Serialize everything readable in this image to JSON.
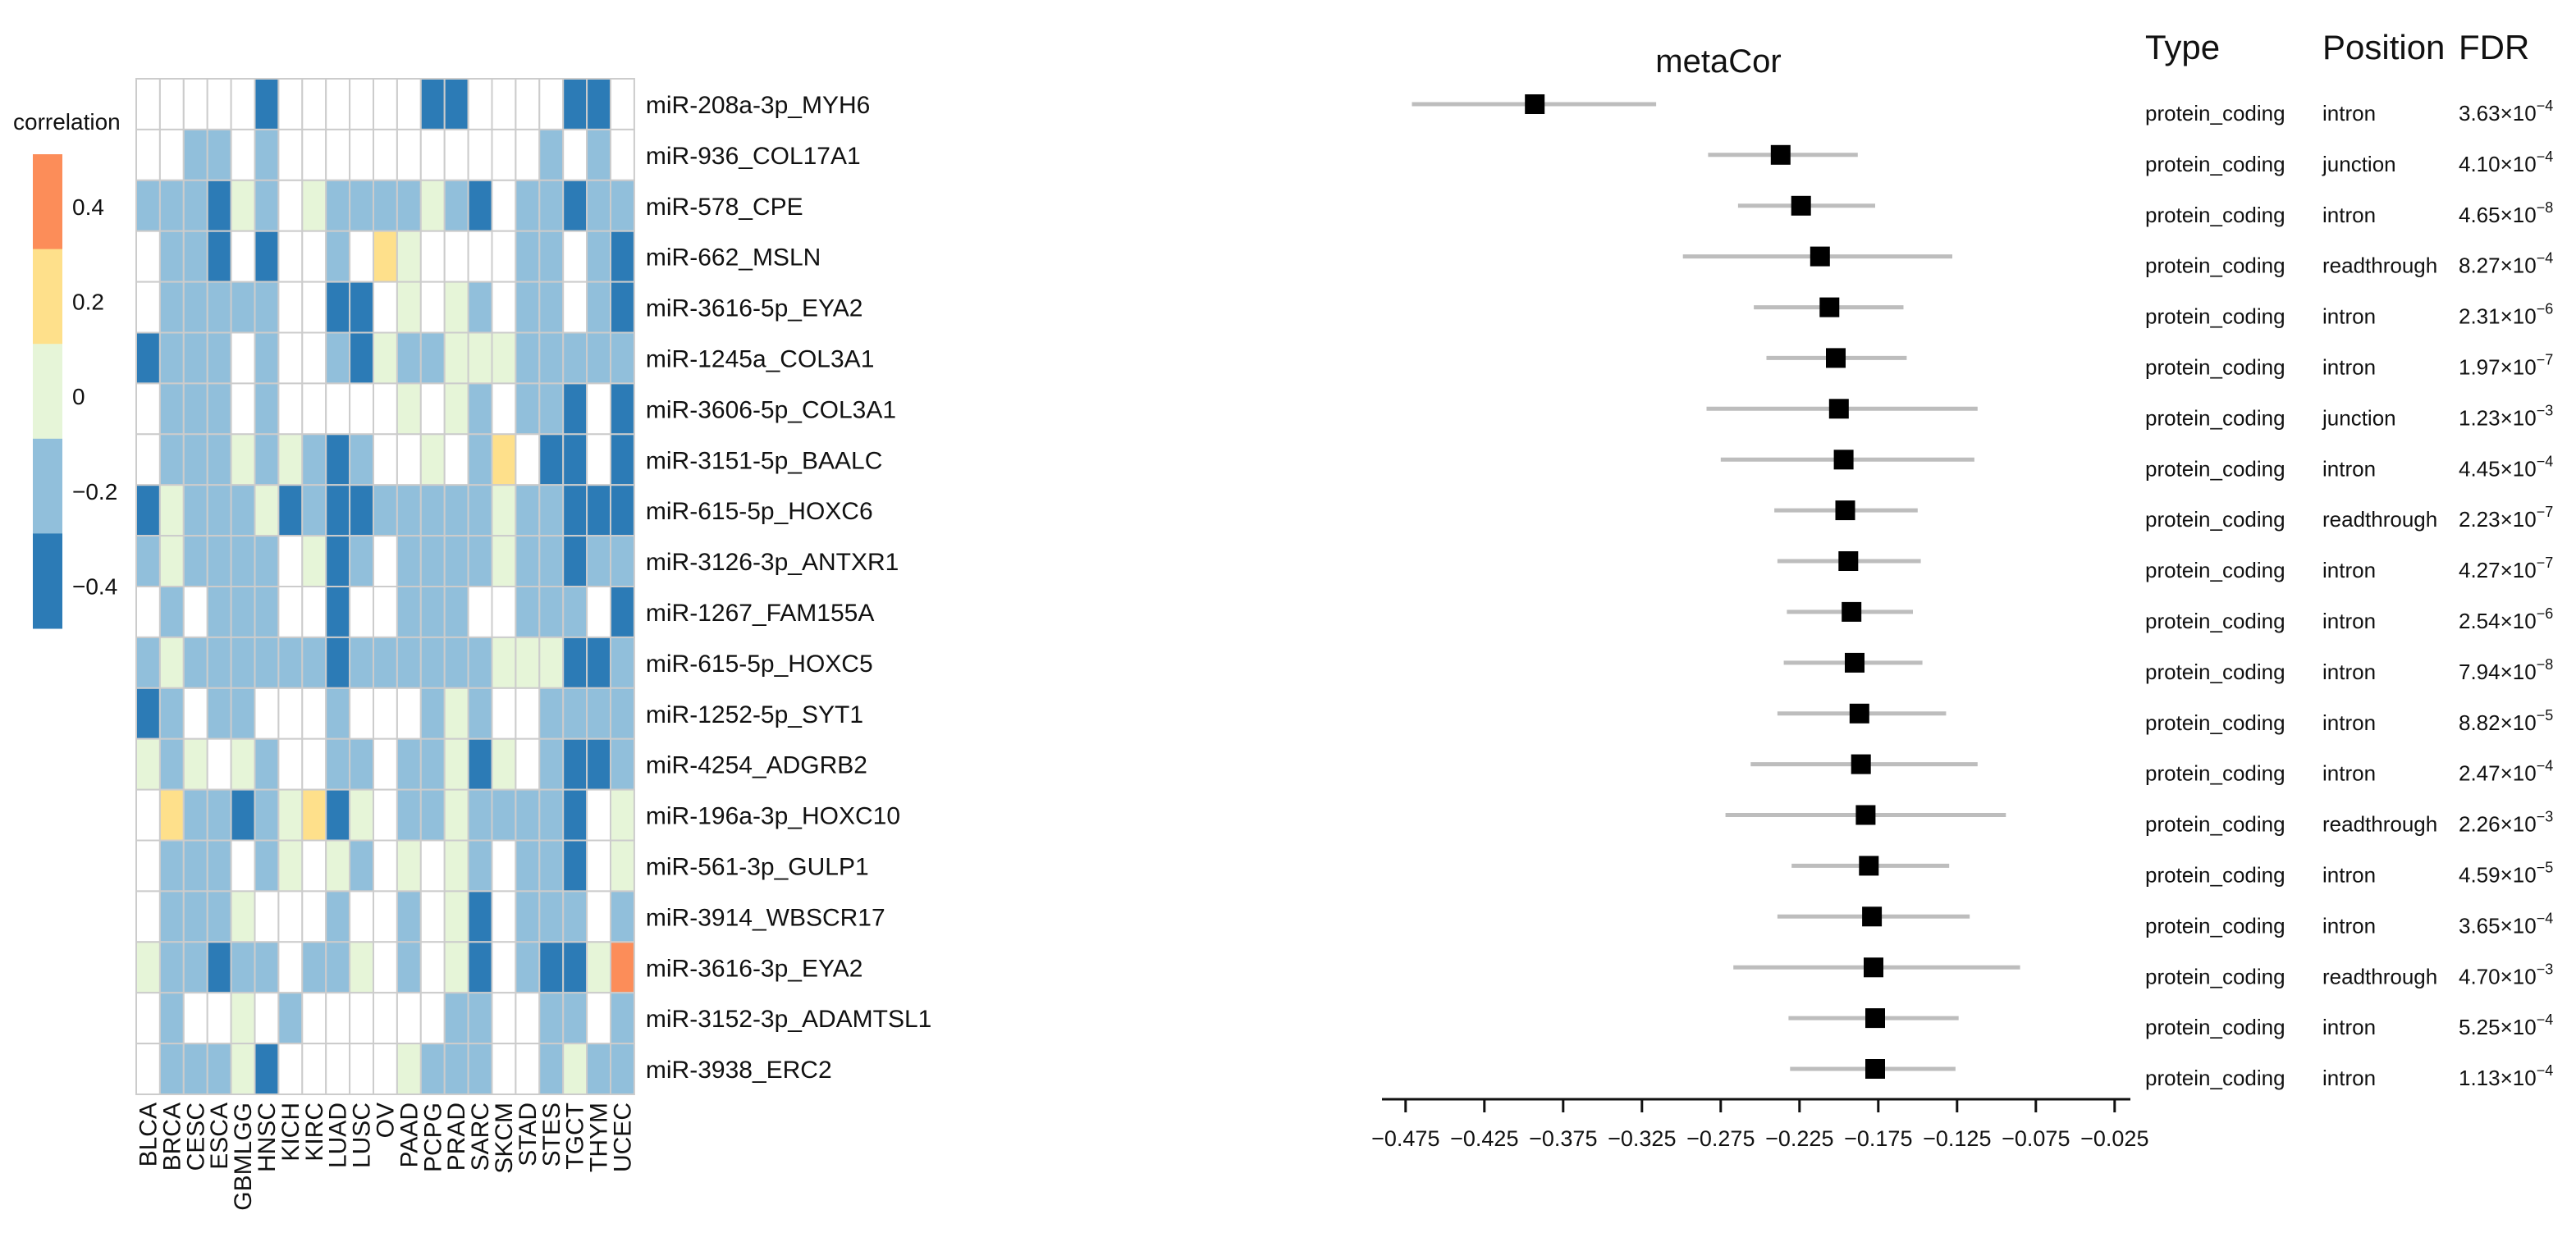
{
  "chart_data": [
    {
      "type": "heatmap",
      "legend_title": "correlation",
      "legend_ticks": [
        "0.4",
        "0.2",
        "0",
        "−0.2",
        "−0.4"
      ],
      "color_levels": [
        {
          "value": 0.5,
          "color": "#FC8D59"
        },
        {
          "value": 0.3,
          "color": "#FEE08B"
        },
        {
          "value": 0.1,
          "color": "#E6F5D8"
        },
        {
          "value": 0.0,
          "color": "#FFFFFF"
        },
        {
          "value": -0.15,
          "color": "#E6F5D8"
        },
        {
          "value": -0.3,
          "color": "#91BFDB"
        },
        {
          "value": -0.45,
          "color": "#2C7BB6"
        }
      ],
      "columns": [
        "BLCA",
        "BRCA",
        "CESC",
        "ESCA",
        "GBMLGG",
        "HNSC",
        "KICH",
        "KIRC",
        "LUAD",
        "LUSC",
        "OV",
        "PAAD",
        "PCPG",
        "PRAD",
        "SARC",
        "SKCM",
        "STAD",
        "STES",
        "TGCT",
        "THYM",
        "UCEC"
      ],
      "rows": [
        "miR-208a-3p_MYH6",
        "miR-936_COL17A1",
        "miR-578_CPE",
        "miR-662_MSLN",
        "miR-3616-5p_EYA2",
        "miR-1245a_COL3A1",
        "miR-3606-5p_COL3A1",
        "miR-3151-5p_BAALC",
        "miR-615-5p_HOXC6",
        "miR-3126-3p_ANTXR1",
        "miR-1267_FAM155A",
        "miR-615-5p_HOXC5",
        "miR-1252-5p_SYT1",
        "miR-4254_ADGRB2",
        "miR-196a-3p_HOXC10",
        "miR-561-3p_GULP1",
        "miR-3914_WBSCR17",
        "miR-3616-3p_EYA2",
        "miR-3152-3p_ADAMTSL1",
        "miR-3938_ERC2"
      ],
      "values": [
        [
          0,
          0,
          0,
          0,
          0,
          -0.45,
          0,
          0,
          0,
          0,
          0,
          0,
          -0.45,
          -0.45,
          0,
          0,
          0,
          0,
          -0.45,
          -0.45,
          0
        ],
        [
          0,
          0,
          -0.3,
          -0.3,
          0,
          -0.3,
          0,
          0,
          0,
          0,
          0,
          0,
          0,
          0,
          0,
          0,
          0,
          -0.3,
          0,
          -0.3,
          0
        ],
        [
          -0.3,
          -0.3,
          -0.3,
          -0.45,
          -0.15,
          -0.3,
          0,
          -0.15,
          -0.3,
          -0.3,
          -0.3,
          -0.3,
          -0.15,
          -0.3,
          -0.45,
          0,
          -0.3,
          -0.3,
          -0.45,
          -0.3,
          -0.3
        ],
        [
          0,
          -0.3,
          -0.3,
          -0.45,
          0,
          -0.45,
          0,
          0,
          -0.3,
          0,
          0.3,
          -0.15,
          0,
          0,
          0,
          0,
          -0.3,
          -0.3,
          0,
          -0.3,
          -0.45
        ],
        [
          0,
          -0.3,
          -0.3,
          -0.3,
          -0.3,
          -0.3,
          0,
          0,
          -0.45,
          -0.45,
          0,
          -0.15,
          0,
          -0.15,
          -0.3,
          0,
          -0.3,
          -0.3,
          0,
          -0.3,
          -0.45
        ],
        [
          -0.45,
          -0.3,
          -0.3,
          -0.3,
          0,
          -0.3,
          0,
          0,
          -0.3,
          -0.45,
          -0.15,
          -0.3,
          -0.3,
          -0.15,
          -0.15,
          -0.15,
          -0.3,
          -0.3,
          -0.3,
          -0.3,
          -0.3
        ],
        [
          0,
          -0.3,
          -0.3,
          -0.3,
          0,
          -0.3,
          0,
          0,
          0,
          0,
          0,
          -0.15,
          0,
          -0.15,
          -0.3,
          0,
          -0.3,
          -0.3,
          -0.45,
          0,
          -0.45
        ],
        [
          0,
          -0.3,
          -0.3,
          -0.3,
          -0.15,
          -0.3,
          -0.15,
          -0.3,
          -0.45,
          -0.3,
          0,
          0,
          -0.15,
          0,
          -0.3,
          0.3,
          0,
          -0.45,
          -0.45,
          0,
          -0.45
        ],
        [
          -0.45,
          -0.15,
          -0.3,
          -0.3,
          -0.3,
          -0.15,
          -0.45,
          -0.3,
          -0.45,
          -0.45,
          -0.3,
          -0.3,
          -0.3,
          -0.3,
          -0.3,
          -0.15,
          -0.3,
          -0.3,
          -0.45,
          -0.45,
          -0.45
        ],
        [
          -0.3,
          -0.15,
          -0.3,
          -0.3,
          -0.3,
          -0.3,
          0,
          -0.15,
          -0.45,
          -0.3,
          0,
          -0.3,
          -0.3,
          -0.3,
          -0.3,
          -0.15,
          -0.3,
          -0.3,
          -0.45,
          -0.3,
          -0.3
        ],
        [
          0,
          -0.3,
          0,
          -0.3,
          -0.3,
          -0.3,
          0,
          0,
          -0.45,
          0,
          0,
          -0.3,
          -0.3,
          -0.3,
          0,
          0,
          -0.3,
          -0.3,
          -0.3,
          0,
          -0.45
        ],
        [
          -0.3,
          -0.15,
          -0.3,
          -0.3,
          -0.3,
          -0.3,
          -0.3,
          -0.3,
          -0.45,
          -0.3,
          -0.3,
          -0.3,
          -0.3,
          -0.3,
          -0.3,
          -0.15,
          -0.15,
          -0.15,
          -0.45,
          -0.45,
          -0.3
        ],
        [
          -0.45,
          -0.3,
          0,
          -0.3,
          -0.3,
          0,
          0,
          0,
          -0.3,
          0,
          0,
          0,
          -0.3,
          -0.15,
          -0.3,
          0,
          0,
          -0.3,
          -0.3,
          -0.3,
          -0.3
        ],
        [
          -0.15,
          -0.3,
          -0.15,
          0,
          -0.15,
          -0.3,
          0,
          0,
          -0.3,
          -0.3,
          0,
          -0.3,
          -0.3,
          -0.15,
          -0.45,
          -0.15,
          0,
          -0.3,
          -0.45,
          -0.45,
          -0.3
        ],
        [
          0,
          0.3,
          -0.3,
          -0.3,
          -0.45,
          -0.3,
          -0.15,
          0.3,
          -0.45,
          -0.15,
          0,
          -0.3,
          -0.3,
          -0.15,
          -0.3,
          -0.3,
          -0.3,
          -0.3,
          -0.45,
          0,
          -0.15
        ],
        [
          0,
          -0.3,
          -0.3,
          -0.3,
          0,
          -0.3,
          -0.15,
          0,
          -0.15,
          -0.3,
          0,
          -0.15,
          0,
          -0.15,
          -0.3,
          0,
          -0.3,
          -0.3,
          -0.45,
          0,
          -0.15
        ],
        [
          0,
          -0.3,
          -0.3,
          -0.3,
          -0.15,
          0,
          0,
          0,
          -0.3,
          0,
          0,
          -0.3,
          0,
          -0.15,
          -0.45,
          0,
          -0.3,
          -0.3,
          -0.3,
          0,
          -0.3
        ],
        [
          -0.15,
          -0.3,
          -0.3,
          -0.45,
          -0.3,
          -0.3,
          0,
          -0.3,
          -0.3,
          -0.15,
          0,
          -0.3,
          0,
          -0.15,
          -0.45,
          0,
          -0.3,
          -0.45,
          -0.45,
          -0.15,
          0.5
        ],
        [
          0,
          -0.3,
          0,
          0,
          -0.15,
          0,
          -0.3,
          0,
          0,
          0,
          0,
          0,
          0,
          -0.3,
          -0.3,
          0,
          0,
          -0.3,
          -0.3,
          0,
          -0.3
        ],
        [
          0,
          -0.3,
          -0.3,
          -0.3,
          -0.15,
          -0.45,
          0,
          0,
          0,
          0,
          0,
          -0.15,
          -0.3,
          -0.3,
          -0.3,
          0,
          0,
          -0.3,
          -0.15,
          -0.3,
          -0.3
        ]
      ]
    },
    {
      "type": "forest",
      "title": "metaCor",
      "xlim": [
        -0.49,
        -0.015
      ],
      "xticks": [
        -0.475,
        -0.425,
        -0.375,
        -0.325,
        -0.275,
        -0.225,
        -0.175,
        -0.125,
        -0.075,
        -0.025
      ],
      "xtick_labels": [
        "−0.475",
        "−0.425",
        "−0.375",
        "−0.325",
        "−0.275",
        "−0.225",
        "−0.175",
        "−0.125",
        "−0.075",
        "−0.025"
      ],
      "points": [
        {
          "est": -0.393,
          "lo": -0.471,
          "hi": -0.316
        },
        {
          "est": -0.237,
          "lo": -0.283,
          "hi": -0.188
        },
        {
          "est": -0.224,
          "lo": -0.264,
          "hi": -0.177
        },
        {
          "est": -0.212,
          "lo": -0.299,
          "hi": -0.128
        },
        {
          "est": -0.206,
          "lo": -0.254,
          "hi": -0.159
        },
        {
          "est": -0.202,
          "lo": -0.246,
          "hi": -0.157
        },
        {
          "est": -0.2,
          "lo": -0.284,
          "hi": -0.112
        },
        {
          "est": -0.197,
          "lo": -0.275,
          "hi": -0.114
        },
        {
          "est": -0.196,
          "lo": -0.241,
          "hi": -0.15
        },
        {
          "est": -0.194,
          "lo": -0.239,
          "hi": -0.148
        },
        {
          "est": -0.192,
          "lo": -0.233,
          "hi": -0.153
        },
        {
          "est": -0.19,
          "lo": -0.235,
          "hi": -0.147
        },
        {
          "est": -0.187,
          "lo": -0.239,
          "hi": -0.132
        },
        {
          "est": -0.186,
          "lo": -0.256,
          "hi": -0.112
        },
        {
          "est": -0.183,
          "lo": -0.272,
          "hi": -0.094
        },
        {
          "est": -0.181,
          "lo": -0.23,
          "hi": -0.13
        },
        {
          "est": -0.179,
          "lo": -0.239,
          "hi": -0.117
        },
        {
          "est": -0.178,
          "lo": -0.267,
          "hi": -0.085
        },
        {
          "est": -0.177,
          "lo": -0.232,
          "hi": -0.124
        },
        {
          "est": -0.177,
          "lo": -0.231,
          "hi": -0.126
        }
      ]
    },
    {
      "type": "table",
      "headers": [
        "Type",
        "Position",
        "FDR"
      ],
      "rows": [
        [
          "protein_coding",
          "intron",
          "3.63",
          "-4"
        ],
        [
          "protein_coding",
          "junction",
          "4.10",
          "-4"
        ],
        [
          "protein_coding",
          "intron",
          "4.65",
          "-8"
        ],
        [
          "protein_coding",
          "readthrough",
          "8.27",
          "-4"
        ],
        [
          "protein_coding",
          "intron",
          "2.31",
          "-6"
        ],
        [
          "protein_coding",
          "intron",
          "1.97",
          "-7"
        ],
        [
          "protein_coding",
          "junction",
          "1.23",
          "-3"
        ],
        [
          "protein_coding",
          "intron",
          "4.45",
          "-4"
        ],
        [
          "protein_coding",
          "readthrough",
          "2.23",
          "-7"
        ],
        [
          "protein_coding",
          "intron",
          "4.27",
          "-7"
        ],
        [
          "protein_coding",
          "intron",
          "2.54",
          "-6"
        ],
        [
          "protein_coding",
          "intron",
          "7.94",
          "-8"
        ],
        [
          "protein_coding",
          "intron",
          "8.82",
          "-5"
        ],
        [
          "protein_coding",
          "intron",
          "2.47",
          "-4"
        ],
        [
          "protein_coding",
          "readthrough",
          "2.26",
          "-3"
        ],
        [
          "protein_coding",
          "intron",
          "4.59",
          "-5"
        ],
        [
          "protein_coding",
          "intron",
          "3.65",
          "-4"
        ],
        [
          "protein_coding",
          "readthrough",
          "4.70",
          "-3"
        ],
        [
          "protein_coding",
          "intron",
          "5.25",
          "-4"
        ],
        [
          "protein_coding",
          "intron",
          "1.13",
          "-4"
        ]
      ],
      "times_sign": "×10"
    }
  ]
}
